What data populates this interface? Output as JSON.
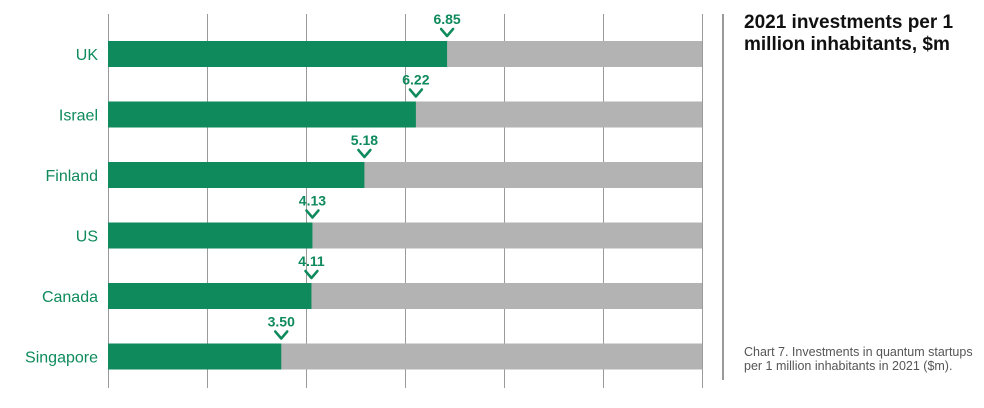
{
  "chart_data": {
    "type": "bar",
    "orientation": "horizontal",
    "title": "2021 investments per 1 million inhabitants, $m",
    "caption": "Chart 7. Investments in quantum startups per 1 million inhabitants in 2021 ($m).",
    "categories": [
      "UK",
      "Israel",
      "Finland",
      "US",
      "Canada",
      "Singapore"
    ],
    "values": [
      6.85,
      6.22,
      5.18,
      4.13,
      4.11,
      3.5
    ],
    "value_labels": [
      "6.85",
      "6.22",
      "5.18",
      "4.13",
      "4.11",
      "3.50"
    ],
    "xlim": [
      0,
      12
    ],
    "grid": true,
    "colors": {
      "bar": "#0e8a5c",
      "track": "#b3b3b3",
      "grid": "#9a9a9a"
    }
  }
}
